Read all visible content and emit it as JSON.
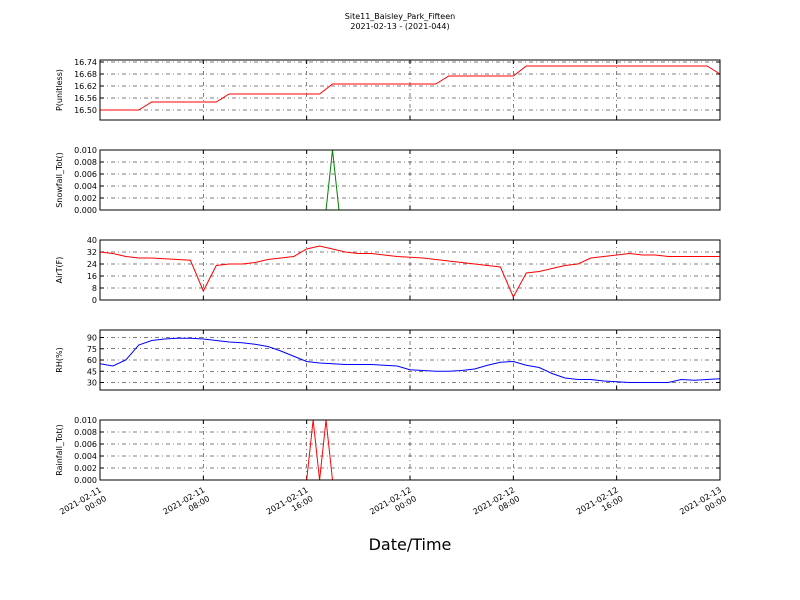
{
  "title": "Site11_Baisley_Park_Fifteen",
  "subtitle": "2021-02-13 - (2021-044)",
  "x_axis": {
    "label": "Date/Time",
    "xlim": [
      "2021-02-11 00:00",
      "2021-02-13 00:00"
    ],
    "xticks": [
      "2021-02-11 00:00",
      "2021-02-11 08:00",
      "2021-02-11 16:00",
      "2021-02-12 00:00",
      "2021-02-12 08:00",
      "2021-02-12 16:00",
      "2021-02-13 00:00"
    ],
    "grid": true
  },
  "chart_data": [
    {
      "type": "line",
      "ylabel": "P(unitless)",
      "ylim": [
        16.45,
        16.75
      ],
      "yticks": [
        {
          "value": 16.5,
          "label": "16.50"
        },
        16.56,
        16.62,
        16.68,
        16.74
      ],
      "series": [
        {
          "color": "#ff0000",
          "x": [
            "2021-02-11 00:00",
            "2021-02-11 01:00",
            "2021-02-11 02:00",
            "2021-02-11 03:00",
            "2021-02-11 04:00",
            "2021-02-11 05:00",
            "2021-02-11 06:00",
            "2021-02-11 07:00",
            "2021-02-11 08:00",
            "2021-02-11 09:00",
            "2021-02-11 10:00",
            "2021-02-11 11:00",
            "2021-02-11 12:00",
            "2021-02-11 13:00",
            "2021-02-11 14:00",
            "2021-02-11 15:00",
            "2021-02-11 16:00",
            "2021-02-11 17:00",
            "2021-02-11 18:00",
            "2021-02-11 19:00",
            "2021-02-11 20:00",
            "2021-02-11 21:00",
            "2021-02-11 22:00",
            "2021-02-11 23:00",
            "2021-02-12 00:00",
            "2021-02-12 01:00",
            "2021-02-12 02:00",
            "2021-02-12 03:00",
            "2021-02-12 04:00",
            "2021-02-12 05:00",
            "2021-02-12 06:00",
            "2021-02-12 07:00",
            "2021-02-12 08:00",
            "2021-02-12 09:00",
            "2021-02-12 10:00",
            "2021-02-12 11:00",
            "2021-02-12 12:00",
            "2021-02-12 13:00",
            "2021-02-12 14:00",
            "2021-02-12 15:00",
            "2021-02-12 16:00",
            "2021-02-12 17:00",
            "2021-02-12 18:00",
            "2021-02-12 19:00",
            "2021-02-12 20:00",
            "2021-02-12 21:00",
            "2021-02-12 22:00",
            "2021-02-12 23:00",
            "2021-02-13 00:00"
          ],
          "values": [
            16.5,
            16.5,
            16.5,
            16.5,
            16.54,
            16.54,
            16.54,
            16.54,
            16.54,
            16.54,
            16.58,
            16.58,
            16.58,
            16.58,
            16.58,
            16.58,
            16.58,
            16.58,
            16.63,
            16.63,
            16.63,
            16.63,
            16.63,
            16.63,
            16.63,
            16.63,
            16.63,
            16.67,
            16.67,
            16.67,
            16.67,
            16.67,
            16.67,
            16.72,
            16.72,
            16.72,
            16.72,
            16.72,
            16.72,
            16.72,
            16.72,
            16.72,
            16.72,
            16.72,
            16.72,
            16.72,
            16.72,
            16.72,
            16.68
          ]
        }
      ]
    },
    {
      "type": "line",
      "ylabel": "Snowfall_Tot()",
      "ylim": [
        0,
        0.01
      ],
      "yticks": [
        {
          "value": 0,
          "label": "0.000"
        },
        {
          "value": 0.002,
          "label": "0.002"
        },
        {
          "value": 0.004,
          "label": "0.004"
        },
        {
          "value": 0.006,
          "label": "0.006"
        },
        {
          "value": 0.008,
          "label": "0.008"
        },
        {
          "value": 0.01,
          "label": "0.010"
        }
      ],
      "series": [
        {
          "color": "#008000",
          "x": [
            "2021-02-11 00:00",
            "2021-02-11 17:30",
            "2021-02-11 18:00",
            "2021-02-11 18:30",
            "2021-02-13 00:00"
          ],
          "values": [
            0,
            0,
            0.01,
            0,
            0
          ]
        }
      ]
    },
    {
      "type": "line",
      "ylabel": "AirT(F)",
      "ylim": [
        0,
        40
      ],
      "yticks": [
        0,
        8,
        16,
        24,
        32,
        40
      ],
      "series": [
        {
          "color": "#ff0000",
          "x": [
            "2021-02-11 00:00",
            "2021-02-11 01:00",
            "2021-02-11 02:00",
            "2021-02-11 03:00",
            "2021-02-11 04:00",
            "2021-02-11 05:00",
            "2021-02-11 06:00",
            "2021-02-11 07:00",
            "2021-02-11 08:00",
            "2021-02-11 09:00",
            "2021-02-11 10:00",
            "2021-02-11 11:00",
            "2021-02-11 12:00",
            "2021-02-11 13:00",
            "2021-02-11 14:00",
            "2021-02-11 15:00",
            "2021-02-11 16:00",
            "2021-02-11 17:00",
            "2021-02-11 18:00",
            "2021-02-11 19:00",
            "2021-02-11 20:00",
            "2021-02-11 21:00",
            "2021-02-11 22:00",
            "2021-02-11 23:00",
            "2021-02-12 00:00",
            "2021-02-12 01:00",
            "2021-02-12 02:00",
            "2021-02-12 03:00",
            "2021-02-12 04:00",
            "2021-02-12 05:00",
            "2021-02-12 06:00",
            "2021-02-12 07:00",
            "2021-02-12 08:00",
            "2021-02-12 09:00",
            "2021-02-12 10:00",
            "2021-02-12 11:00",
            "2021-02-12 12:00",
            "2021-02-12 13:00",
            "2021-02-12 14:00",
            "2021-02-12 15:00",
            "2021-02-12 16:00",
            "2021-02-12 17:00",
            "2021-02-12 18:00",
            "2021-02-12 19:00",
            "2021-02-12 20:00",
            "2021-02-12 21:00",
            "2021-02-12 22:00",
            "2021-02-12 23:00",
            "2021-02-13 00:00"
          ],
          "values": [
            32,
            31,
            29,
            28,
            28,
            27.5,
            27,
            26.5,
            6,
            23,
            24,
            24,
            25,
            27,
            28,
            29,
            34,
            36,
            34,
            32,
            31,
            31,
            30,
            29,
            28.5,
            28,
            27,
            26,
            25,
            24,
            23,
            22,
            2,
            18,
            19,
            21,
            23,
            24,
            28,
            29,
            30,
            31,
            30,
            30,
            29,
            29,
            29,
            29,
            29
          ]
        }
      ]
    },
    {
      "type": "line",
      "ylabel": "RH(%)",
      "ylim": [
        20,
        100
      ],
      "yticks": [
        30,
        45,
        60,
        75,
        90
      ],
      "series": [
        {
          "color": "#0000ff",
          "x": [
            "2021-02-11 00:00",
            "2021-02-11 01:00",
            "2021-02-11 02:00",
            "2021-02-11 03:00",
            "2021-02-11 04:00",
            "2021-02-11 05:00",
            "2021-02-11 06:00",
            "2021-02-11 07:00",
            "2021-02-11 08:00",
            "2021-02-11 09:00",
            "2021-02-11 10:00",
            "2021-02-11 11:00",
            "2021-02-11 12:00",
            "2021-02-11 13:00",
            "2021-02-11 14:00",
            "2021-02-11 15:00",
            "2021-02-11 16:00",
            "2021-02-11 17:00",
            "2021-02-11 18:00",
            "2021-02-11 19:00",
            "2021-02-11 20:00",
            "2021-02-11 21:00",
            "2021-02-11 22:00",
            "2021-02-11 23:00",
            "2021-02-12 00:00",
            "2021-02-12 01:00",
            "2021-02-12 02:00",
            "2021-02-12 03:00",
            "2021-02-12 04:00",
            "2021-02-12 05:00",
            "2021-02-12 06:00",
            "2021-02-12 07:00",
            "2021-02-12 08:00",
            "2021-02-12 09:00",
            "2021-02-12 10:00",
            "2021-02-12 11:00",
            "2021-02-12 12:00",
            "2021-02-12 13:00",
            "2021-02-12 14:00",
            "2021-02-12 15:00",
            "2021-02-12 16:00",
            "2021-02-12 17:00",
            "2021-02-12 18:00",
            "2021-02-12 19:00",
            "2021-02-12 20:00",
            "2021-02-12 21:00",
            "2021-02-12 22:00",
            "2021-02-12 23:00",
            "2021-02-13 00:00"
          ],
          "values": [
            55,
            52,
            60,
            80,
            86,
            88,
            89,
            89,
            88,
            86,
            84,
            83,
            81,
            78,
            72,
            65,
            58,
            56,
            55,
            54,
            54,
            54,
            53,
            52,
            47,
            46,
            45,
            45,
            46,
            48,
            53,
            57,
            58,
            53,
            50,
            42,
            36,
            34,
            34,
            32,
            31,
            30,
            30,
            30,
            30,
            34,
            33,
            34,
            35
          ]
        }
      ]
    },
    {
      "type": "line",
      "ylabel": "Rainfall_Tot()",
      "ylim": [
        0,
        0.01
      ],
      "yticks": [
        {
          "value": 0,
          "label": "0.000"
        },
        {
          "value": 0.002,
          "label": "0.002"
        },
        {
          "value": 0.004,
          "label": "0.004"
        },
        {
          "value": 0.006,
          "label": "0.006"
        },
        {
          "value": 0.008,
          "label": "0.008"
        },
        {
          "value": 0.01,
          "label": "0.010"
        }
      ],
      "series": [
        {
          "color": "#ff0000",
          "x": [
            "2021-02-11 00:00",
            "2021-02-11 16:00",
            "2021-02-11 16:30",
            "2021-02-11 17:00",
            "2021-02-11 17:30",
            "2021-02-11 18:00",
            "2021-02-13 00:00"
          ],
          "values": [
            0,
            0,
            0.01,
            0,
            0.01,
            0,
            0
          ]
        }
      ]
    }
  ]
}
